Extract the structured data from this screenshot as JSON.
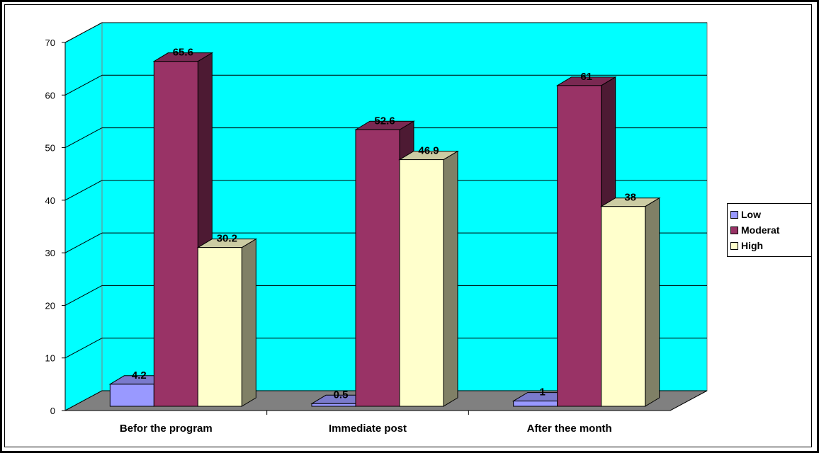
{
  "chart_data": {
    "type": "bar",
    "categories": [
      "Befor the program",
      "Immediate post",
      "After thee month"
    ],
    "series": [
      {
        "name": "Low",
        "values": [
          4.2,
          0.5,
          1
        ],
        "color": "#9999ff"
      },
      {
        "name": "Moderat",
        "values": [
          65.6,
          52.6,
          61
        ],
        "color": "#993366"
      },
      {
        "name": "High",
        "values": [
          30.2,
          46.9,
          38
        ],
        "color": "#ffffcc"
      }
    ],
    "data_labels": [
      [
        "4.2",
        "0.5",
        "1"
      ],
      [
        "65.6",
        "52.6",
        "61"
      ],
      [
        "30.2",
        "46.9",
        "38"
      ]
    ],
    "y_ticks": [
      "0",
      "10",
      "20",
      "30",
      "40",
      "50",
      "60",
      "70"
    ],
    "ylim": [
      0,
      70
    ],
    "title": "",
    "xlabel": "",
    "ylabel": "",
    "grid": true,
    "three_d": true,
    "legend_position": "right",
    "wall_color": "#00ffff",
    "floor_color": "#808080"
  }
}
